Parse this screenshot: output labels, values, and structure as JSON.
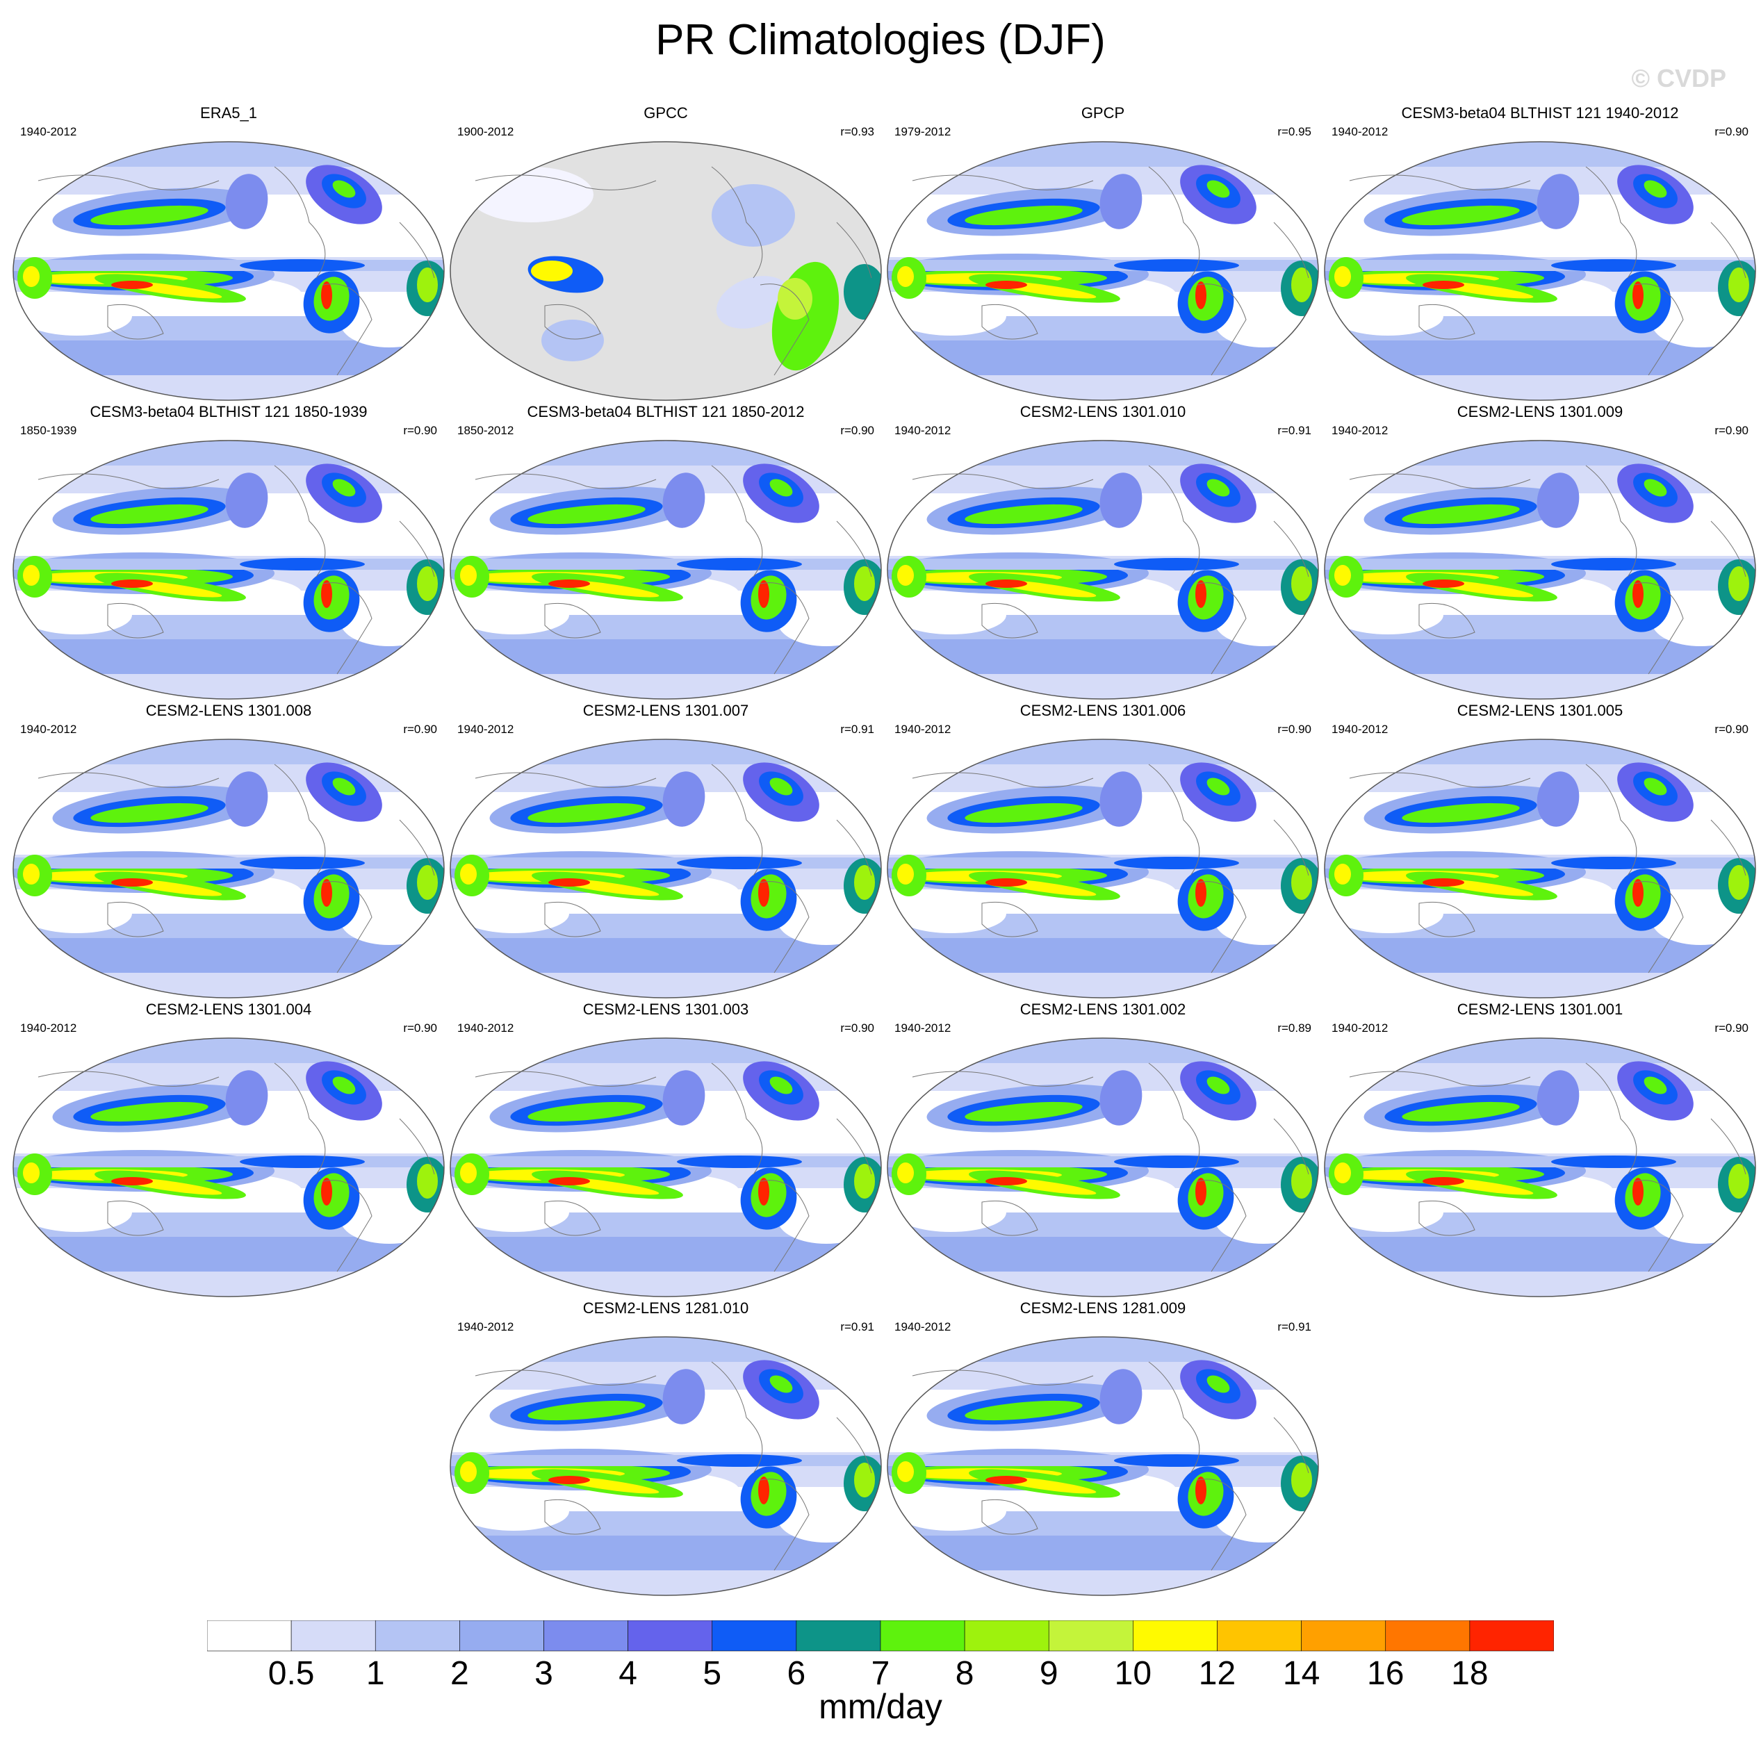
{
  "title": "PR Climatologies (DJF)",
  "watermark": "© CVDP",
  "ocean_masked_color": "#e1e1e1",
  "panels": [
    {
      "title": "ERA5_1",
      "years": "1940-2012",
      "corr": "",
      "masked": false
    },
    {
      "title": "GPCC",
      "years": "1900-2012",
      "corr": "r=0.93",
      "masked": true
    },
    {
      "title": "GPCP",
      "years": "1979-2012",
      "corr": "r=0.95",
      "masked": false
    },
    {
      "title": "CESM3-beta04 BLTHIST 121 1940-2012",
      "years": "1940-2012",
      "corr": "r=0.90",
      "masked": false
    },
    {
      "title": "CESM3-beta04 BLTHIST 121 1850-1939",
      "years": "1850-1939",
      "corr": "r=0.90",
      "masked": false
    },
    {
      "title": "CESM3-beta04 BLTHIST 121 1850-2012",
      "years": "1850-2012",
      "corr": "r=0.90",
      "masked": false
    },
    {
      "title": "CESM2-LENS 1301.010",
      "years": "1940-2012",
      "corr": "r=0.91",
      "masked": false
    },
    {
      "title": "CESM2-LENS 1301.009",
      "years": "1940-2012",
      "corr": "r=0.90",
      "masked": false
    },
    {
      "title": "CESM2-LENS 1301.008",
      "years": "1940-2012",
      "corr": "r=0.90",
      "masked": false
    },
    {
      "title": "CESM2-LENS 1301.007",
      "years": "1940-2012",
      "corr": "r=0.91",
      "masked": false
    },
    {
      "title": "CESM2-LENS 1301.006",
      "years": "1940-2012",
      "corr": "r=0.90",
      "masked": false
    },
    {
      "title": "CESM2-LENS 1301.005",
      "years": "1940-2012",
      "corr": "r=0.90",
      "masked": false
    },
    {
      "title": "CESM2-LENS 1301.004",
      "years": "1940-2012",
      "corr": "r=0.90",
      "masked": false
    },
    {
      "title": "CESM2-LENS 1301.003",
      "years": "1940-2012",
      "corr": "r=0.90",
      "masked": false
    },
    {
      "title": "CESM2-LENS 1301.002",
      "years": "1940-2012",
      "corr": "r=0.89",
      "masked": false
    },
    {
      "title": "CESM2-LENS 1301.001",
      "years": "1940-2012",
      "corr": "r=0.90",
      "masked": false
    },
    {
      "title": "CESM2-LENS 1281.010",
      "years": "1940-2012",
      "corr": "r=0.91",
      "masked": false
    },
    {
      "title": "CESM2-LENS 1281.009",
      "years": "1940-2012",
      "corr": "r=0.91",
      "masked": false
    }
  ],
  "colorbar": {
    "units": "mm/day",
    "colors": [
      "#ffffff",
      "#d6dcf8",
      "#b4c4f4",
      "#96acf0",
      "#7c8cee",
      "#6463ec",
      "#0f5cf6",
      "#0d9488",
      "#5ef20d",
      "#9ef20d",
      "#c4f43a",
      "#fffa00",
      "#ffc400",
      "#ffa000",
      "#ff7600",
      "#ff2400"
    ],
    "labels": [
      "0.5",
      "1",
      "2",
      "3",
      "4",
      "5",
      "6",
      "7",
      "8",
      "9",
      "10",
      "12",
      "14",
      "16",
      "18"
    ]
  }
}
